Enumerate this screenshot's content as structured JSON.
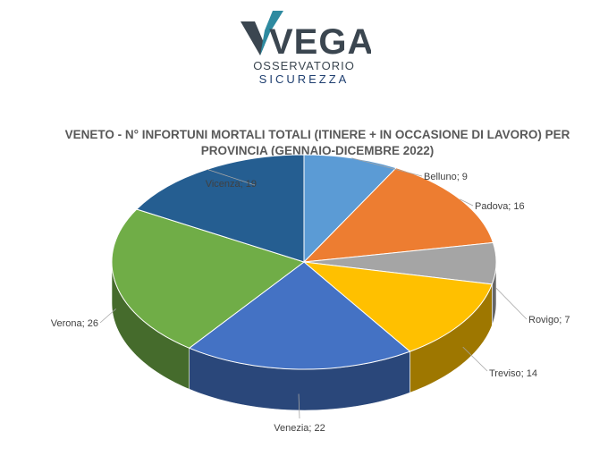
{
  "logo": {
    "brand": "VEGA",
    "line1": "OSSERVATORIO",
    "line2": "SICUREZZA",
    "colors": {
      "dark": "#3b4650",
      "teal": "#2e8aa0",
      "navy": "#1f3f70"
    }
  },
  "chart_data": {
    "type": "pie",
    "title": "VENETO - N° INFORTUNI MORTALI TOTALI (ITINERE + IN OCCASIONE DI LAVORO) PER PROVINCIA (GENNAIO-DICEMBRE 2022)",
    "style": "3d",
    "legend": "none",
    "categories": [
      "Belluno",
      "Padova",
      "Rovigo",
      "Treviso",
      "Venezia",
      "Verona",
      "Vicenza"
    ],
    "values": [
      9,
      16,
      7,
      14,
      22,
      26,
      19
    ],
    "labels": [
      "Belluno; 9",
      "Padova; 16",
      "Rovigo; 7",
      "Treviso; 14",
      "Venezia; 22",
      "Verona; 26",
      "Vicenza; 19"
    ],
    "colors": [
      "#5b9bd5",
      "#ed7d31",
      "#a5a5a5",
      "#ffc000",
      "#4472c4",
      "#70ad47",
      "#255e91"
    ]
  }
}
